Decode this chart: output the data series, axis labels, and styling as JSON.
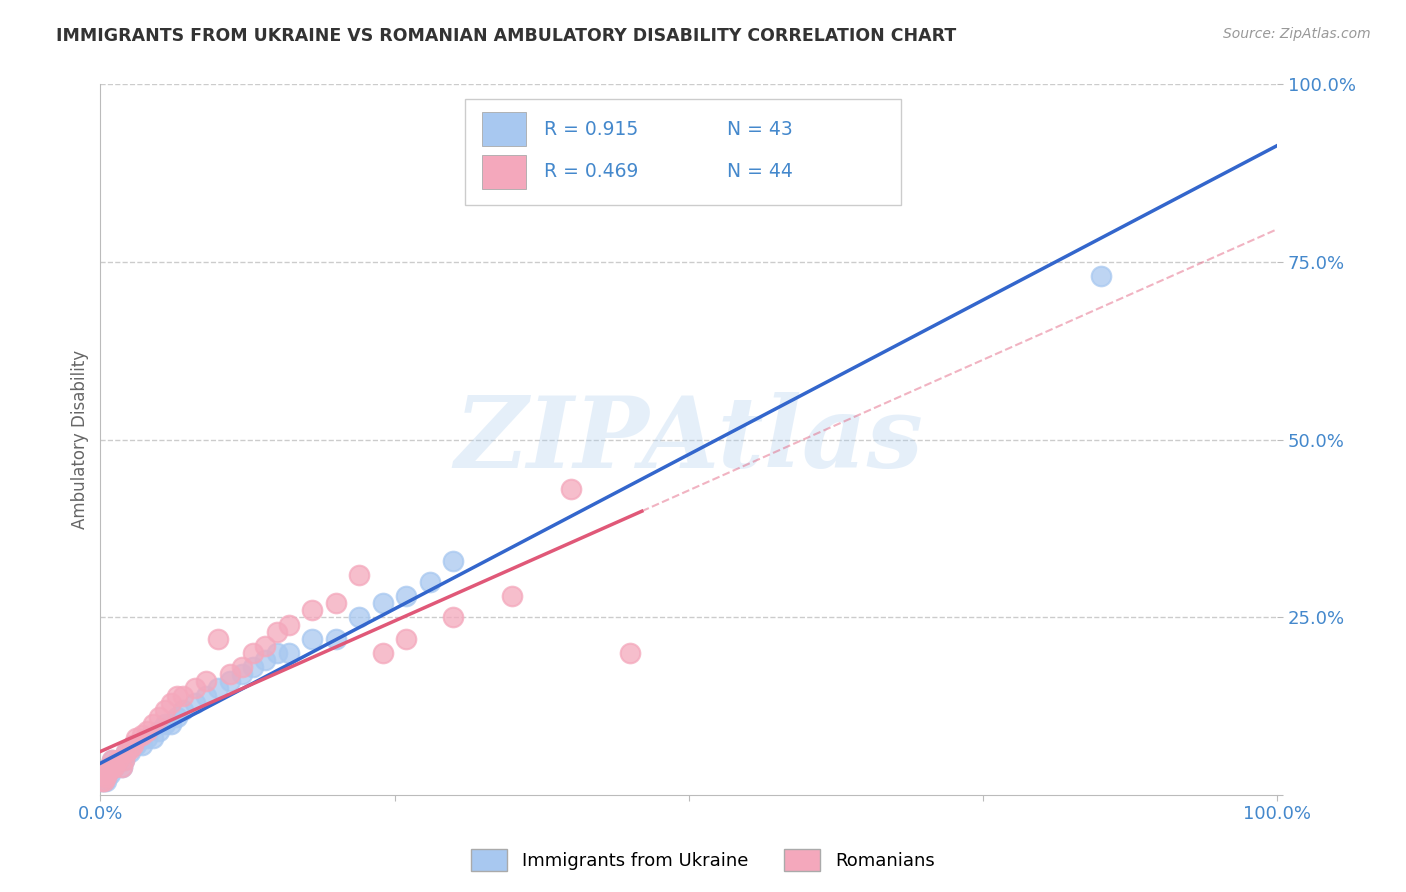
{
  "title": "IMMIGRANTS FROM UKRAINE VS ROMANIAN AMBULATORY DISABILITY CORRELATION CHART",
  "source": "Source: ZipAtlas.com",
  "ylabel": "Ambulatory Disability",
  "watermark": "ZIPAtlas",
  "xlim": [
    0.0,
    1.0
  ],
  "ylim": [
    0.0,
    1.0
  ],
  "ukraine_color": "#A8C8F0",
  "romanian_color": "#F4A8BC",
  "ukraine_R": 0.915,
  "ukraine_N": 43,
  "romanian_R": 0.469,
  "romanian_N": 44,
  "ukraine_line_color": "#3366CC",
  "romanian_line_color": "#E05878",
  "ukraine_scatter_x": [
    0.001,
    0.002,
    0.003,
    0.004,
    0.005,
    0.006,
    0.007,
    0.008,
    0.009,
    0.01,
    0.012,
    0.015,
    0.018,
    0.02,
    0.022,
    0.025,
    0.028,
    0.03,
    0.035,
    0.04,
    0.045,
    0.05,
    0.055,
    0.06,
    0.065,
    0.07,
    0.08,
    0.09,
    0.1,
    0.11,
    0.12,
    0.13,
    0.14,
    0.15,
    0.16,
    0.18,
    0.2,
    0.22,
    0.24,
    0.26,
    0.28,
    0.3,
    0.85
  ],
  "ukraine_scatter_y": [
    0.02,
    0.03,
    0.02,
    0.03,
    0.02,
    0.03,
    0.04,
    0.03,
    0.04,
    0.05,
    0.04,
    0.05,
    0.04,
    0.05,
    0.06,
    0.06,
    0.07,
    0.07,
    0.07,
    0.08,
    0.08,
    0.09,
    0.1,
    0.1,
    0.11,
    0.12,
    0.13,
    0.14,
    0.15,
    0.16,
    0.17,
    0.18,
    0.19,
    0.2,
    0.2,
    0.22,
    0.22,
    0.25,
    0.27,
    0.28,
    0.3,
    0.33,
    0.73
  ],
  "romanian_scatter_x": [
    0.001,
    0.002,
    0.003,
    0.004,
    0.005,
    0.006,
    0.007,
    0.008,
    0.009,
    0.01,
    0.012,
    0.015,
    0.018,
    0.02,
    0.022,
    0.025,
    0.028,
    0.03,
    0.035,
    0.04,
    0.045,
    0.05,
    0.055,
    0.06,
    0.065,
    0.07,
    0.08,
    0.09,
    0.1,
    0.11,
    0.12,
    0.13,
    0.14,
    0.15,
    0.16,
    0.18,
    0.2,
    0.22,
    0.24,
    0.26,
    0.3,
    0.35,
    0.4,
    0.45
  ],
  "romanian_scatter_y": [
    0.02,
    0.03,
    0.02,
    0.03,
    0.025,
    0.035,
    0.04,
    0.035,
    0.04,
    0.05,
    0.04,
    0.05,
    0.04,
    0.05,
    0.06,
    0.065,
    0.07,
    0.08,
    0.085,
    0.09,
    0.1,
    0.11,
    0.12,
    0.13,
    0.14,
    0.14,
    0.15,
    0.16,
    0.22,
    0.17,
    0.18,
    0.2,
    0.21,
    0.23,
    0.24,
    0.26,
    0.27,
    0.31,
    0.2,
    0.22,
    0.25,
    0.28,
    0.43,
    0.2
  ],
  "background_color": "#FFFFFF",
  "grid_color": "#CCCCCC",
  "title_color": "#333333",
  "axis_label_color": "#666666",
  "tick_label_color": "#4488CC",
  "legend_text_color": "#4488CC",
  "bottom_legend_ukraine": "Immigrants from Ukraine",
  "bottom_legend_romanian": "Romanians"
}
